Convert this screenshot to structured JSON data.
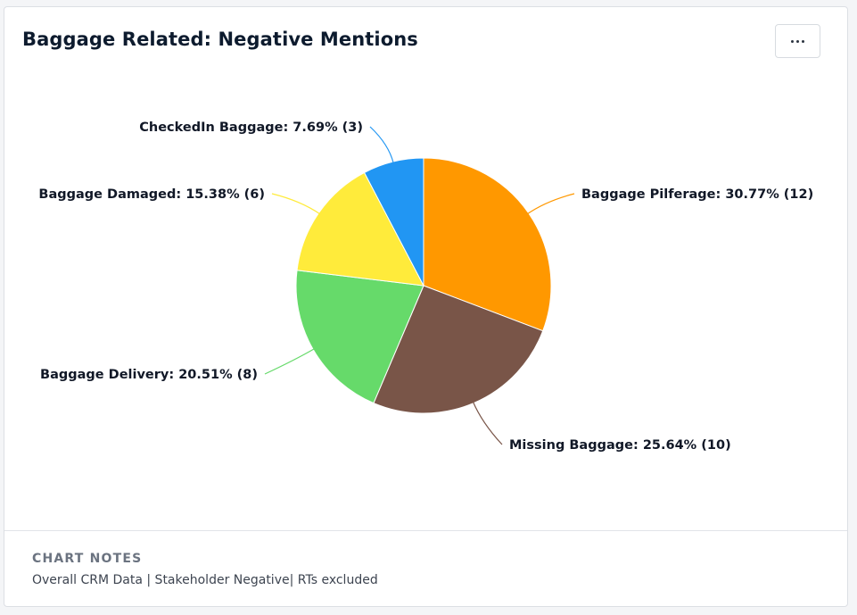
{
  "card": {
    "title": "Baggage Related: Negative Mentions",
    "menu_icon": "more-horizontal-icon"
  },
  "chart_data": {
    "type": "pie",
    "start_angle_deg": 0,
    "direction": "clockwise",
    "slices": [
      {
        "name": "Baggage Pilferage",
        "value": 12,
        "percent": 30.77,
        "label": "Baggage Pilferage: 30.77% (12)",
        "color": "#FF9800"
      },
      {
        "name": "Missing Baggage",
        "value": 10,
        "percent": 25.64,
        "label": "Missing Baggage: 25.64% (10)",
        "color": "#795548"
      },
      {
        "name": "Baggage Delivery",
        "value": 8,
        "percent": 20.51,
        "label": "Baggage Delivery: 20.51% (8)",
        "color": "#66DA6A"
      },
      {
        "name": "Baggage Damaged",
        "value": 6,
        "percent": 15.38,
        "label": "Baggage Damaged: 15.38% (6)",
        "color": "#FFEB3B"
      },
      {
        "name": "CheckedIn Baggage",
        "value": 3,
        "percent": 7.69,
        "label": "CheckedIn Baggage: 7.69% (3)",
        "color": "#2196F3"
      }
    ]
  },
  "notes": {
    "heading": "CHART NOTES",
    "text": "Overall CRM Data | Stakeholder Negative| RTs excluded"
  }
}
